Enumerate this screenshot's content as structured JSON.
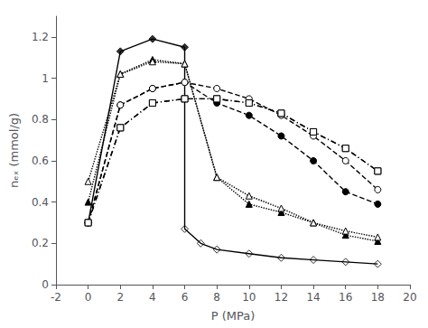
{
  "chart_data": {
    "type": "line",
    "xlabel": "P (MPa)",
    "ylabel": "nₑₓ (mmol/g)",
    "xlim": [
      -2,
      20
    ],
    "ylim": [
      0.0,
      1.3
    ],
    "xticks": [
      -2,
      0,
      2,
      4,
      6,
      8,
      10,
      12,
      14,
      16,
      18,
      20
    ],
    "yticks": [
      0.0,
      0.2,
      0.4,
      0.6,
      0.8,
      1.0,
      1.2
    ],
    "grid": false,
    "color": "#000000",
    "series": [
      {
        "type": "line",
        "line_style": "solid",
        "marker": "none",
        "x": [
          0,
          2,
          4,
          6,
          6,
          7,
          8,
          10,
          12,
          14,
          16,
          18
        ],
        "values": [
          0.3,
          1.13,
          1.19,
          1.15,
          0.27,
          0.2,
          0.17,
          0.15,
          0.13,
          0.12,
          0.11,
          0.1
        ]
      },
      {
        "type": "scatter",
        "marker": "diamond",
        "x": [
          0,
          2,
          4,
          6
        ],
        "values": [
          0.3,
          1.13,
          1.19,
          1.15
        ]
      },
      {
        "type": "scatter",
        "marker": "open-diamond",
        "x": [
          6,
          7,
          8,
          10,
          12,
          14,
          16,
          18
        ],
        "values": [
          0.27,
          0.2,
          0.17,
          0.15,
          0.13,
          0.12,
          0.11,
          0.1
        ]
      },
      {
        "type": "line",
        "line_style": "dashed",
        "marker": "circle",
        "x": [
          0,
          2,
          4,
          6,
          8,
          10,
          12,
          14,
          16,
          18
        ],
        "values": [
          0.3,
          0.87,
          0.95,
          0.98,
          0.88,
          0.82,
          0.72,
          0.6,
          0.45,
          0.39
        ]
      },
      {
        "type": "line",
        "line_style": "dashed",
        "marker": "open-circle",
        "x": [
          0,
          2,
          4,
          6,
          8,
          10,
          12,
          14,
          16,
          18
        ],
        "values": [
          0.3,
          0.87,
          0.95,
          0.98,
          0.95,
          0.9,
          0.82,
          0.72,
          0.6,
          0.46
        ]
      },
      {
        "type": "line",
        "line_style": "dashdot",
        "marker": "square",
        "x": [
          0,
          2,
          4,
          6,
          8,
          10,
          12,
          14,
          16,
          18
        ],
        "values": [
          0.3,
          0.76,
          0.88,
          0.9,
          0.9,
          0.88,
          0.83,
          0.74,
          0.66,
          0.55
        ]
      },
      {
        "type": "line",
        "line_style": "dashdot",
        "marker": "open-square",
        "x": [
          0,
          2,
          4,
          6,
          8,
          10,
          12,
          14,
          16,
          18
        ],
        "values": [
          0.3,
          0.76,
          0.88,
          0.9,
          0.9,
          0.88,
          0.83,
          0.74,
          0.66,
          0.55
        ]
      },
      {
        "type": "line",
        "line_style": "dotted",
        "marker": "triangle",
        "x": [
          0,
          2,
          4,
          6,
          8,
          10,
          12,
          14,
          16,
          18
        ],
        "values": [
          0.4,
          1.02,
          1.09,
          1.07,
          0.52,
          0.39,
          0.35,
          0.3,
          0.24,
          0.21
        ]
      },
      {
        "type": "line",
        "line_style": "dotted",
        "marker": "open-triangle",
        "x": [
          0,
          2,
          4,
          6,
          8,
          10,
          12,
          14,
          16,
          18
        ],
        "values": [
          0.5,
          1.02,
          1.08,
          1.07,
          0.52,
          0.43,
          0.37,
          0.3,
          0.26,
          0.23
        ]
      }
    ]
  }
}
